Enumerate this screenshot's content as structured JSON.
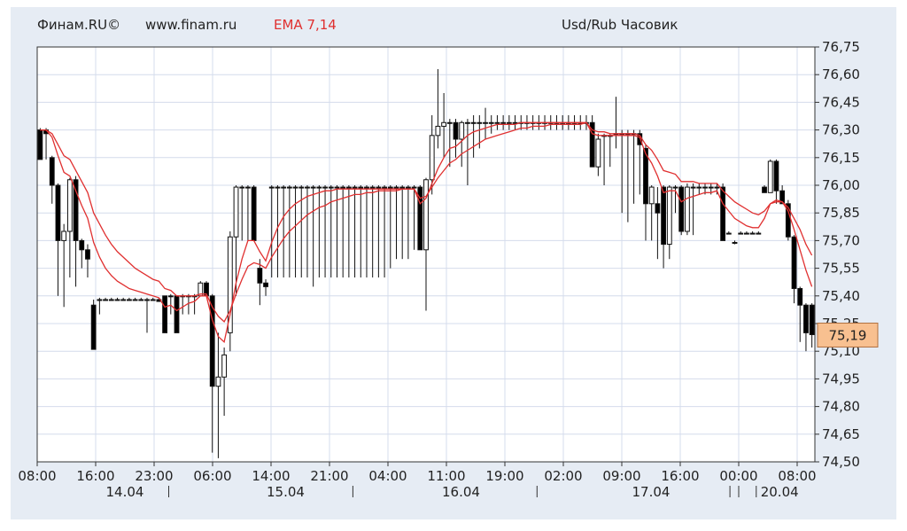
{
  "header": {
    "brand": "Финам.RU©",
    "site": "www.finam.ru",
    "indicator": "EMA 7,14",
    "title": "Usd/Rub Часовик"
  },
  "current_price_label": "75,19",
  "colors": {
    "background": "#e6ecf4",
    "plot_background": "#ffffff",
    "grid": "#d4dcec",
    "indicator": "#e03030",
    "candle_up": "#ffffff",
    "candle_down": "#000000",
    "price_badge": "#f8c090"
  },
  "chart_data": {
    "type": "candlestick",
    "title": "Usd/Rub Часовик",
    "indicator": "EMA 7,14",
    "ylim": [
      74.5,
      76.75
    ],
    "y_ticks": [
      "76,75",
      "76,60",
      "76,45",
      "76,30",
      "76,15",
      "76,00",
      "75,85",
      "75,70",
      "75,55",
      "75,40",
      "75,25",
      "75,10",
      "74,95",
      "74,80",
      "74,65",
      "74,50"
    ],
    "x_time_ticks": [
      "08:00",
      "16:00",
      "23:00",
      "06:00",
      "14:00",
      "21:00",
      "04:00",
      "11:00",
      "19:00",
      "02:00",
      "09:00",
      "16:00",
      "00:00",
      "08:00"
    ],
    "x_date_labels": [
      "14.04",
      "15.04",
      "16.04",
      "17.04",
      "20.04"
    ],
    "grid": true,
    "last_price": 75.19,
    "candles": [
      [
        76.3,
        76.14,
        76.31,
        76.14
      ],
      [
        76.3,
        76.28,
        76.31,
        76.14
      ],
      [
        76.15,
        76.0,
        76.16,
        75.9
      ],
      [
        76.0,
        75.7,
        76.01,
        75.4
      ],
      [
        75.7,
        75.75,
        75.79,
        75.34
      ],
      [
        75.75,
        76.03,
        76.04,
        75.5
      ],
      [
        76.03,
        75.7,
        76.05,
        75.45
      ],
      [
        75.7,
        75.65,
        75.71,
        75.55
      ],
      [
        75.65,
        75.6,
        75.68,
        75.5
      ],
      [
        75.35,
        75.11,
        75.38,
        75.11
      ],
      [
        75.38,
        75.38,
        75.39,
        75.3
      ],
      [
        75.38,
        75.38,
        75.39,
        75.38
      ],
      [
        75.38,
        75.38,
        75.39,
        75.38
      ],
      [
        75.38,
        75.38,
        75.39,
        75.38
      ],
      [
        75.38,
        75.38,
        75.39,
        75.38
      ],
      [
        75.38,
        75.38,
        75.39,
        75.38
      ],
      [
        75.38,
        75.38,
        75.39,
        75.38
      ],
      [
        75.38,
        75.38,
        75.39,
        75.38
      ],
      [
        75.38,
        75.38,
        75.39,
        75.2
      ],
      [
        75.38,
        75.38,
        75.39,
        75.38
      ],
      [
        75.38,
        75.37,
        75.39,
        75.38
      ],
      [
        75.4,
        75.2,
        75.4,
        75.2
      ],
      [
        75.4,
        75.4,
        75.41,
        75.3
      ],
      [
        75.4,
        75.2,
        75.4,
        75.2
      ],
      [
        75.4,
        75.4,
        75.41,
        75.3
      ],
      [
        75.4,
        75.4,
        75.41,
        75.3
      ],
      [
        75.4,
        75.4,
        75.41,
        75.3
      ],
      [
        75.4,
        75.47,
        75.48,
        75.4
      ],
      [
        75.47,
        75.4,
        75.48,
        75.4
      ],
      [
        75.4,
        74.91,
        75.41,
        74.55
      ],
      [
        74.91,
        74.96,
        75.2,
        74.52
      ],
      [
        74.96,
        75.08,
        75.12,
        74.75
      ],
      [
        75.2,
        75.72,
        75.75,
        75.1
      ],
      [
        75.72,
        75.99,
        76.0,
        75.4
      ],
      [
        75.99,
        75.99,
        76.0,
        75.7
      ],
      [
        75.99,
        75.99,
        76.0,
        75.7
      ],
      [
        75.99,
        75.7,
        76.0,
        75.7
      ],
      [
        75.55,
        75.47,
        75.6,
        75.35
      ],
      [
        75.47,
        75.45,
        75.49,
        75.4
      ],
      [
        75.99,
        75.99,
        76.0,
        75.5
      ],
      [
        75.99,
        75.99,
        76.0,
        75.5
      ],
      [
        75.99,
        75.99,
        76.0,
        75.5
      ],
      [
        75.99,
        75.99,
        76.0,
        75.5
      ],
      [
        75.99,
        75.99,
        76.0,
        75.5
      ],
      [
        75.99,
        75.99,
        76.0,
        75.5
      ],
      [
        75.99,
        75.99,
        76.0,
        75.5
      ],
      [
        75.99,
        75.99,
        76.0,
        75.45
      ],
      [
        75.99,
        75.99,
        76.0,
        75.5
      ],
      [
        75.99,
        75.99,
        76.0,
        75.5
      ],
      [
        75.99,
        75.99,
        76.0,
        75.5
      ],
      [
        75.99,
        75.99,
        76.0,
        75.5
      ],
      [
        75.99,
        75.99,
        76.0,
        75.5
      ],
      [
        75.99,
        75.99,
        76.0,
        75.5
      ],
      [
        75.99,
        75.99,
        76.0,
        75.5
      ],
      [
        75.99,
        75.99,
        76.0,
        75.5
      ],
      [
        75.99,
        75.99,
        76.0,
        75.5
      ],
      [
        75.99,
        75.99,
        76.0,
        75.5
      ],
      [
        75.99,
        75.99,
        76.0,
        75.5
      ],
      [
        75.99,
        75.99,
        76.0,
        75.5
      ],
      [
        75.99,
        75.99,
        76.0,
        75.55
      ],
      [
        75.99,
        75.99,
        76.0,
        75.6
      ],
      [
        75.99,
        75.99,
        76.0,
        75.6
      ],
      [
        75.99,
        75.99,
        76.0,
        75.6
      ],
      [
        75.99,
        75.99,
        76.0,
        75.65
      ],
      [
        75.99,
        75.65,
        76.0,
        75.65
      ],
      [
        75.65,
        76.03,
        76.04,
        75.32
      ],
      [
        76.03,
        76.27,
        76.38,
        75.95
      ],
      [
        76.27,
        76.32,
        76.63,
        76.2
      ],
      [
        76.32,
        76.34,
        76.5,
        76.15
      ],
      [
        76.34,
        76.34,
        76.36,
        76.1
      ],
      [
        76.34,
        76.25,
        76.36,
        76.15
      ],
      [
        76.25,
        76.34,
        76.35,
        76.1
      ],
      [
        76.34,
        76.34,
        76.36,
        76.0
      ],
      [
        76.34,
        76.34,
        76.38,
        76.15
      ],
      [
        76.34,
        76.34,
        76.38,
        76.2
      ],
      [
        76.34,
        76.34,
        76.42,
        76.25
      ],
      [
        76.34,
        76.34,
        76.38,
        76.28
      ],
      [
        76.34,
        76.34,
        76.38,
        76.3
      ],
      [
        76.34,
        76.34,
        76.38,
        76.3
      ],
      [
        76.34,
        76.34,
        76.38,
        76.3
      ],
      [
        76.34,
        76.34,
        76.38,
        76.3
      ],
      [
        76.34,
        76.34,
        76.38,
        76.3
      ],
      [
        76.34,
        76.34,
        76.38,
        76.3
      ],
      [
        76.34,
        76.34,
        76.38,
        76.3
      ],
      [
        76.34,
        76.34,
        76.38,
        76.3
      ],
      [
        76.34,
        76.34,
        76.38,
        76.3
      ],
      [
        76.34,
        76.34,
        76.38,
        76.3
      ],
      [
        76.34,
        76.34,
        76.38,
        76.3
      ],
      [
        76.34,
        76.34,
        76.38,
        76.3
      ],
      [
        76.34,
        76.34,
        76.38,
        76.3
      ],
      [
        76.34,
        76.34,
        76.38,
        76.3
      ],
      [
        76.34,
        76.34,
        76.38,
        76.3
      ],
      [
        76.34,
        76.34,
        76.38,
        76.3
      ],
      [
        76.34,
        76.1,
        76.38,
        76.1
      ],
      [
        76.1,
        76.25,
        76.28,
        76.05
      ],
      [
        76.27,
        76.27,
        76.28,
        76.0
      ],
      [
        76.27,
        76.27,
        76.28,
        76.1
      ],
      [
        76.28,
        76.28,
        76.48,
        76.2
      ],
      [
        76.28,
        76.28,
        76.3,
        75.85
      ],
      [
        76.28,
        76.28,
        76.3,
        75.8
      ],
      [
        76.28,
        76.28,
        76.3,
        75.9
      ],
      [
        76.28,
        76.22,
        76.3,
        75.95
      ],
      [
        76.2,
        75.9,
        76.22,
        75.7
      ],
      [
        75.9,
        75.99,
        76.0,
        75.7
      ],
      [
        75.9,
        75.85,
        75.99,
        75.6
      ],
      [
        75.99,
        75.68,
        76.0,
        75.55
      ],
      [
        75.68,
        75.99,
        76.0,
        75.6
      ],
      [
        75.99,
        75.99,
        76.0,
        75.85
      ],
      [
        75.99,
        75.75,
        76.0,
        75.73
      ],
      [
        75.75,
        75.99,
        76.01,
        75.73
      ],
      [
        75.99,
        75.99,
        76.01,
        75.73
      ],
      [
        75.99,
        75.99,
        76.01,
        75.95
      ],
      [
        75.99,
        75.99,
        76.01,
        75.95
      ],
      [
        75.99,
        75.99,
        76.01,
        75.95
      ],
      [
        75.99,
        75.99,
        76.01,
        75.95
      ],
      [
        75.99,
        75.7,
        76.01,
        75.7
      ],
      [
        75.74,
        75.74,
        75.75,
        75.74
      ],
      [
        75.69,
        75.69,
        75.7,
        75.68
      ],
      [
        75.74,
        75.74,
        75.75,
        75.74
      ],
      [
        75.74,
        75.74,
        75.75,
        75.74
      ],
      [
        75.74,
        75.74,
        75.75,
        75.74
      ],
      [
        75.74,
        75.74,
        75.75,
        75.74
      ],
      [
        75.99,
        75.96,
        76.0,
        75.96
      ],
      [
        75.96,
        76.13,
        76.14,
        75.96
      ],
      [
        76.13,
        75.97,
        76.14,
        75.9
      ],
      [
        75.97,
        75.9,
        76.0,
        75.9
      ],
      [
        75.9,
        75.72,
        75.92,
        75.7
      ],
      [
        75.72,
        75.44,
        75.73,
        75.36
      ],
      [
        75.44,
        75.35,
        75.45,
        75.15
      ],
      [
        75.35,
        75.2,
        75.36,
        75.1
      ],
      [
        75.35,
        75.19,
        75.36,
        75.12
      ]
    ],
    "ema7": [
      76.3,
      76.3,
      76.26,
      76.16,
      76.07,
      76.05,
      75.97,
      75.89,
      75.82,
      75.69,
      75.61,
      75.55,
      75.51,
      75.48,
      75.46,
      75.44,
      75.43,
      75.42,
      75.41,
      75.4,
      75.39,
      75.34,
      75.35,
      75.32,
      75.34,
      75.36,
      75.37,
      75.4,
      75.4,
      75.27,
      75.18,
      75.15,
      75.3,
      75.47,
      75.6,
      75.7,
      75.7,
      75.64,
      75.59,
      75.69,
      75.77,
      75.83,
      75.87,
      75.9,
      75.92,
      75.94,
      75.95,
      75.96,
      75.97,
      75.97,
      75.98,
      75.98,
      75.98,
      75.98,
      75.98,
      75.98,
      75.98,
      75.98,
      75.98,
      75.98,
      75.98,
      75.98,
      75.98,
      75.98,
      75.9,
      75.93,
      76.01,
      76.09,
      76.15,
      76.2,
      76.21,
      76.24,
      76.27,
      76.29,
      76.3,
      76.31,
      76.32,
      76.33,
      76.33,
      76.33,
      76.33,
      76.34,
      76.34,
      76.34,
      76.34,
      76.34,
      76.34,
      76.34,
      76.34,
      76.34,
      76.34,
      76.34,
      76.34,
      76.28,
      76.27,
      76.27,
      76.27,
      76.27,
      76.27,
      76.27,
      76.27,
      76.26,
      76.17,
      76.12,
      76.05,
      75.96,
      75.97,
      75.97,
      75.91,
      75.93,
      75.94,
      75.95,
      75.96,
      75.96,
      75.97,
      75.9,
      75.86,
      75.82,
      75.8,
      75.78,
      75.77,
      75.77,
      75.82,
      75.9,
      75.92,
      75.91,
      75.86,
      75.76,
      75.65,
      75.54,
      75.45
    ],
    "ema14": [
      76.3,
      76.3,
      76.28,
      76.22,
      76.16,
      76.14,
      76.08,
      76.02,
      75.96,
      75.85,
      75.79,
      75.73,
      75.68,
      75.64,
      75.61,
      75.58,
      75.55,
      75.53,
      75.51,
      75.49,
      75.48,
      75.44,
      75.43,
      75.4,
      75.4,
      75.4,
      75.4,
      75.41,
      75.41,
      75.34,
      75.29,
      75.26,
      75.32,
      75.41,
      75.49,
      75.56,
      75.58,
      75.57,
      75.55,
      75.61,
      75.66,
      75.71,
      75.75,
      75.78,
      75.81,
      75.84,
      75.86,
      75.88,
      75.89,
      75.91,
      75.92,
      75.93,
      75.94,
      75.95,
      75.95,
      75.96,
      75.96,
      75.97,
      75.97,
      75.97,
      75.97,
      75.98,
      75.98,
      75.98,
      75.93,
      75.94,
      75.99,
      76.04,
      76.08,
      76.12,
      76.14,
      76.17,
      76.19,
      76.21,
      76.23,
      76.25,
      76.26,
      76.27,
      76.28,
      76.29,
      76.3,
      76.31,
      76.31,
      76.32,
      76.32,
      76.32,
      76.33,
      76.33,
      76.33,
      76.33,
      76.33,
      76.33,
      76.34,
      76.3,
      76.29,
      76.29,
      76.28,
      76.28,
      76.28,
      76.28,
      76.28,
      76.27,
      76.22,
      76.19,
      76.14,
      76.08,
      76.07,
      76.06,
      76.02,
      76.02,
      76.02,
      76.01,
      76.01,
      76.01,
      76.01,
      75.97,
      75.94,
      75.91,
      75.89,
      75.87,
      75.85,
      75.84,
      75.86,
      75.9,
      75.91,
      75.91,
      75.88,
      75.82,
      75.76,
      75.68,
      75.62
    ]
  }
}
